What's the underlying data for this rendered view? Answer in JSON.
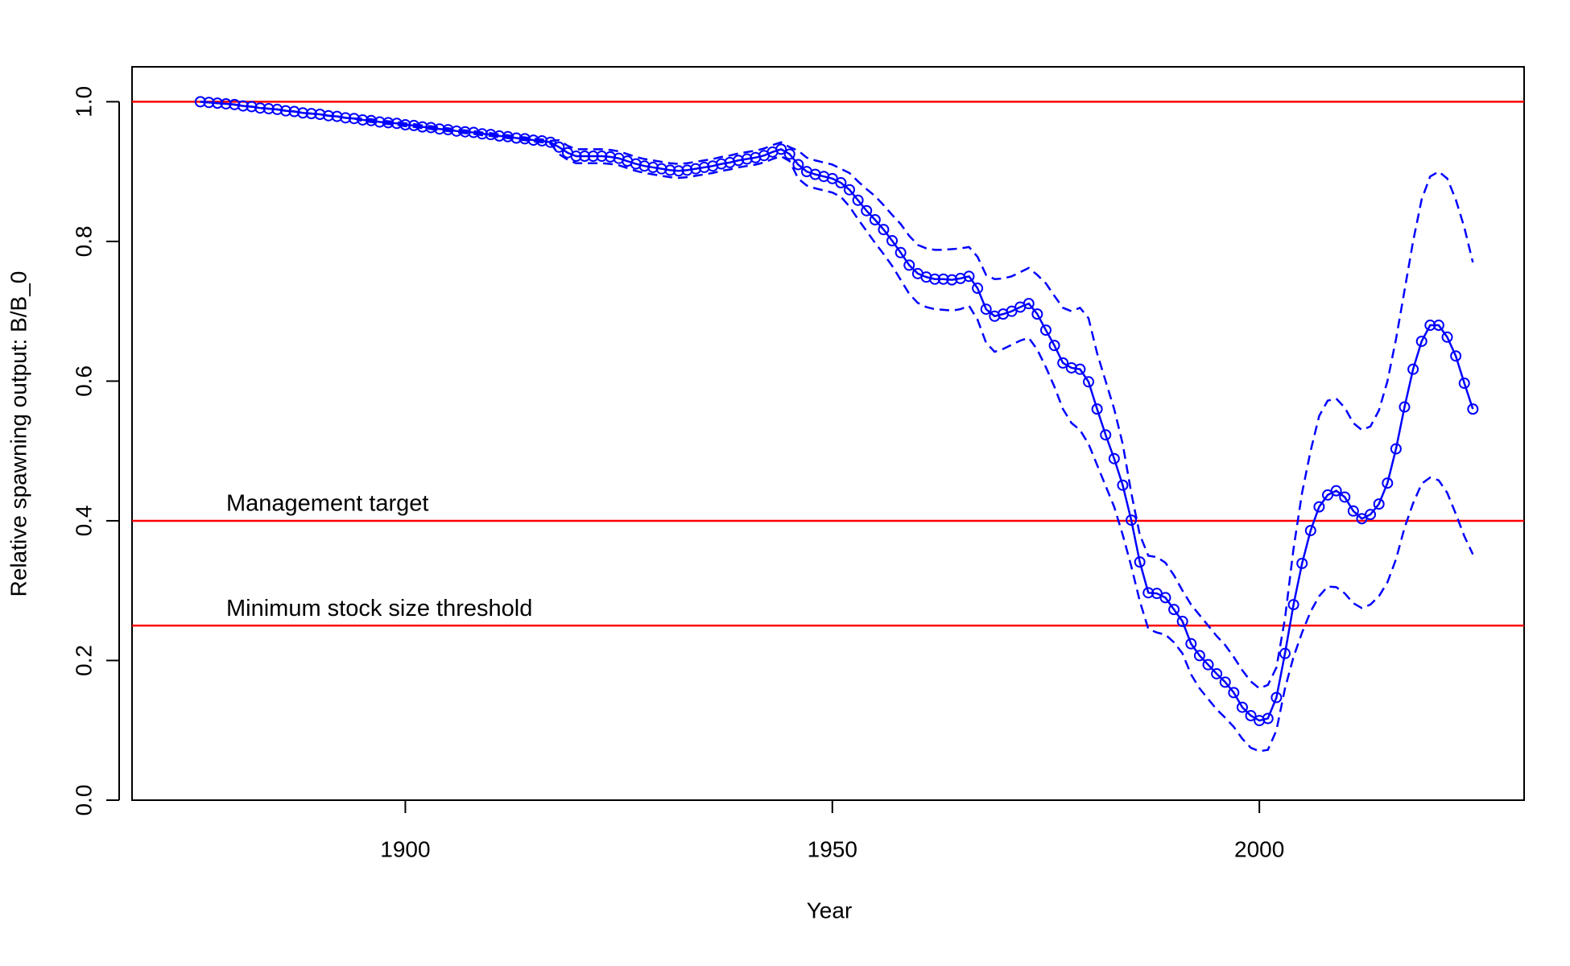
{
  "chart_data": {
    "type": "line",
    "xlabel": "Year",
    "ylabel": "Relative spawning output: B/B_0",
    "x": [
      1876,
      1877,
      1878,
      1879,
      1880,
      1881,
      1882,
      1883,
      1884,
      1885,
      1886,
      1887,
      1888,
      1889,
      1890,
      1891,
      1892,
      1893,
      1894,
      1895,
      1896,
      1897,
      1898,
      1899,
      1900,
      1901,
      1902,
      1903,
      1904,
      1905,
      1906,
      1907,
      1908,
      1909,
      1910,
      1911,
      1912,
      1913,
      1914,
      1915,
      1916,
      1917,
      1918,
      1919,
      1920,
      1921,
      1922,
      1923,
      1924,
      1925,
      1926,
      1927,
      1928,
      1929,
      1930,
      1931,
      1932,
      1933,
      1934,
      1935,
      1936,
      1937,
      1938,
      1939,
      1940,
      1941,
      1942,
      1943,
      1944,
      1945,
      1946,
      1947,
      1948,
      1949,
      1950,
      1951,
      1952,
      1953,
      1954,
      1955,
      1956,
      1957,
      1958,
      1959,
      1960,
      1961,
      1962,
      1963,
      1964,
      1965,
      1966,
      1967,
      1968,
      1969,
      1970,
      1971,
      1972,
      1973,
      1974,
      1975,
      1976,
      1977,
      1978,
      1979,
      1980,
      1981,
      1982,
      1983,
      1984,
      1985,
      1986,
      1987,
      1988,
      1989,
      1990,
      1991,
      1992,
      1993,
      1994,
      1995,
      1996,
      1997,
      1998,
      1999,
      2000,
      2001,
      2002,
      2003,
      2004,
      2005,
      2006,
      2007,
      2008,
      2009,
      2010,
      2011,
      2012,
      2013,
      2014,
      2015,
      2016,
      2017,
      2018,
      2019,
      2020,
      2021,
      2022,
      2023,
      2024,
      2025
    ],
    "series": [
      {
        "color": "#0000ff",
        "marker": "circle",
        "dash": false,
        "values": [
          1.0,
          0.999,
          0.998,
          0.997,
          0.996,
          0.994,
          0.993,
          0.991,
          0.99,
          0.989,
          0.987,
          0.986,
          0.984,
          0.983,
          0.982,
          0.98,
          0.979,
          0.977,
          0.976,
          0.974,
          0.973,
          0.971,
          0.97,
          0.969,
          0.967,
          0.966,
          0.964,
          0.963,
          0.961,
          0.96,
          0.958,
          0.957,
          0.956,
          0.954,
          0.953,
          0.951,
          0.95,
          0.948,
          0.947,
          0.945,
          0.944,
          0.942,
          0.935,
          0.927,
          0.922,
          0.922,
          0.922,
          0.922,
          0.921,
          0.919,
          0.915,
          0.911,
          0.908,
          0.906,
          0.904,
          0.902,
          0.901,
          0.902,
          0.904,
          0.906,
          0.908,
          0.911,
          0.913,
          0.916,
          0.918,
          0.92,
          0.923,
          0.928,
          0.932,
          0.925,
          0.91,
          0.9,
          0.896,
          0.893,
          0.89,
          0.884,
          0.874,
          0.859,
          0.844,
          0.831,
          0.817,
          0.801,
          0.784,
          0.766,
          0.754,
          0.749,
          0.746,
          0.746,
          0.745,
          0.747,
          0.75,
          0.733,
          0.703,
          0.693,
          0.696,
          0.7,
          0.706,
          0.711,
          0.696,
          0.673,
          0.651,
          0.626,
          0.619,
          0.617,
          0.599,
          0.56,
          0.523,
          0.489,
          0.451,
          0.401,
          0.341,
          0.297,
          0.296,
          0.29,
          0.273,
          0.256,
          0.224,
          0.207,
          0.194,
          0.181,
          0.169,
          0.154,
          0.133,
          0.121,
          0.114,
          0.117,
          0.147,
          0.21,
          0.28,
          0.339,
          0.386,
          0.42,
          0.437,
          0.443,
          0.434,
          0.414,
          0.403,
          0.409,
          0.424,
          0.454,
          0.503,
          0.563,
          0.617,
          0.657,
          0.68,
          0.68,
          0.663,
          0.636,
          0.597,
          0.56
        ]
      },
      {
        "color": "#0000ff",
        "marker": "none",
        "dash": true,
        "values": [
          1.0,
          0.999,
          0.998,
          0.997,
          0.996,
          0.994,
          0.993,
          0.991,
          0.99,
          0.989,
          0.987,
          0.986,
          0.984,
          0.983,
          0.982,
          0.98,
          0.979,
          0.977,
          0.976,
          0.976,
          0.975,
          0.973,
          0.972,
          0.971,
          0.969,
          0.968,
          0.966,
          0.965,
          0.963,
          0.962,
          0.96,
          0.959,
          0.958,
          0.956,
          0.955,
          0.953,
          0.952,
          0.95,
          0.949,
          0.947,
          0.946,
          0.944,
          0.945,
          0.937,
          0.932,
          0.932,
          0.932,
          0.932,
          0.931,
          0.929,
          0.925,
          0.921,
          0.918,
          0.916,
          0.914,
          0.912,
          0.911,
          0.912,
          0.914,
          0.916,
          0.918,
          0.921,
          0.923,
          0.926,
          0.928,
          0.93,
          0.933,
          0.938,
          0.942,
          0.935,
          0.93,
          0.92,
          0.916,
          0.913,
          0.91,
          0.904,
          0.898,
          0.886,
          0.875,
          0.865,
          0.852,
          0.838,
          0.825,
          0.808,
          0.795,
          0.79,
          0.788,
          0.788,
          0.789,
          0.79,
          0.792,
          0.778,
          0.752,
          0.746,
          0.747,
          0.75,
          0.756,
          0.762,
          0.752,
          0.74,
          0.722,
          0.705,
          0.7,
          0.705,
          0.69,
          0.64,
          0.6,
          0.56,
          0.51,
          0.44,
          0.38,
          0.35,
          0.348,
          0.34,
          0.322,
          0.3,
          0.28,
          0.265,
          0.25,
          0.235,
          0.222,
          0.205,
          0.186,
          0.17,
          0.16,
          0.165,
          0.19,
          0.26,
          0.36,
          0.44,
          0.5,
          0.55,
          0.572,
          0.575,
          0.562,
          0.54,
          0.53,
          0.535,
          0.558,
          0.6,
          0.66,
          0.73,
          0.8,
          0.86,
          0.893,
          0.9,
          0.89,
          0.86,
          0.82,
          0.77
        ]
      },
      {
        "color": "#0000ff",
        "marker": "none",
        "dash": true,
        "values": [
          1.0,
          0.999,
          0.998,
          0.997,
          0.996,
          0.994,
          0.993,
          0.991,
          0.99,
          0.989,
          0.987,
          0.986,
          0.984,
          0.983,
          0.982,
          0.98,
          0.979,
          0.977,
          0.976,
          0.972,
          0.971,
          0.969,
          0.968,
          0.967,
          0.965,
          0.964,
          0.962,
          0.961,
          0.959,
          0.958,
          0.956,
          0.955,
          0.954,
          0.952,
          0.951,
          0.949,
          0.948,
          0.946,
          0.945,
          0.943,
          0.942,
          0.94,
          0.925,
          0.917,
          0.912,
          0.912,
          0.912,
          0.912,
          0.911,
          0.909,
          0.905,
          0.901,
          0.898,
          0.896,
          0.894,
          0.892,
          0.891,
          0.892,
          0.894,
          0.896,
          0.898,
          0.901,
          0.903,
          0.906,
          0.908,
          0.91,
          0.913,
          0.918,
          0.922,
          0.915,
          0.89,
          0.88,
          0.876,
          0.873,
          0.87,
          0.864,
          0.85,
          0.832,
          0.815,
          0.798,
          0.782,
          0.765,
          0.745,
          0.725,
          0.712,
          0.706,
          0.703,
          0.702,
          0.701,
          0.703,
          0.708,
          0.688,
          0.655,
          0.642,
          0.646,
          0.652,
          0.658,
          0.662,
          0.645,
          0.62,
          0.592,
          0.56,
          0.54,
          0.53,
          0.51,
          0.48,
          0.45,
          0.42,
          0.38,
          0.335,
          0.285,
          0.245,
          0.24,
          0.237,
          0.226,
          0.21,
          0.18,
          0.16,
          0.145,
          0.13,
          0.118,
          0.105,
          0.088,
          0.075,
          0.07,
          0.072,
          0.1,
          0.16,
          0.205,
          0.24,
          0.27,
          0.292,
          0.306,
          0.305,
          0.296,
          0.282,
          0.275,
          0.28,
          0.292,
          0.312,
          0.345,
          0.39,
          0.425,
          0.453,
          0.462,
          0.458,
          0.44,
          0.41,
          0.378,
          0.352
        ]
      }
    ],
    "hlines": [
      {
        "value": 1.0,
        "color": "#ff0000"
      },
      {
        "value": 0.4,
        "color": "#ff0000",
        "label": "Management target"
      },
      {
        "value": 0.25,
        "color": "#ff0000",
        "label": "Minimum stock size threshold"
      }
    ],
    "xlim": [
      1868,
      2031
    ],
    "ylim": [
      0,
      1.05
    ],
    "xticks": [
      1900,
      1950,
      2000
    ],
    "yticks": [
      {
        "value": 0,
        "label": "0.0"
      },
      0.2,
      0.4,
      0.6,
      0.8,
      {
        "value": 1.0,
        "label": "1.0"
      }
    ],
    "grid": false
  }
}
